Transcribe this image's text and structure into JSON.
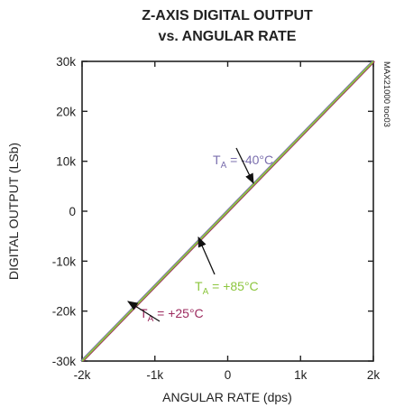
{
  "chart_data": {
    "type": "line",
    "title": "Z-AXIS DIGITAL OUTPUT",
    "subtitle": "vs. ANGULAR RATE",
    "xlabel": "ANGULAR RATE (dps)",
    "ylabel": "DIGITAL OUTPUT (LSb)",
    "side_label": "MAX21000 toc03",
    "xlim": [
      -2000,
      2000
    ],
    "ylim": [
      -30000,
      30000
    ],
    "x_ticks": [
      -2000,
      -1000,
      0,
      1000,
      2000
    ],
    "x_tick_labels": [
      "-2k",
      "-1k",
      "0",
      "1k",
      "2k"
    ],
    "y_ticks": [
      30000,
      20000,
      10000,
      0,
      -10000,
      -20000,
      -30000
    ],
    "y_tick_labels": [
      "30k",
      "20k",
      "10k",
      "0",
      "-10k",
      "-20k",
      "-30k"
    ],
    "grid": false,
    "series": [
      {
        "name": "TA = -40°C",
        "color": "#7b6fae",
        "x": [
          -2000,
          2000
        ],
        "y": [
          -30000,
          30000
        ]
      },
      {
        "name": "TA = +25°C",
        "color": "#9c2a5e",
        "x": [
          -2000,
          2000
        ],
        "y": [
          -30000,
          30000
        ]
      },
      {
        "name": "TA = +85°C",
        "color": "#8dc63f",
        "x": [
          -2000,
          2000
        ],
        "y": [
          -30000,
          30000
        ]
      }
    ],
    "annotations": [
      {
        "prefix": "T",
        "sub": "A",
        "suffix": " = -40°C",
        "color": "#7b6fae",
        "at": [
          -1000,
          -25000
        ],
        "arrow_to": [
          -1000,
          -25000
        ]
      },
      {
        "prefix": "T",
        "sub": "A",
        "suffix": " = +85°C",
        "color": "#8dc63f",
        "at": [
          -1000,
          -25000
        ],
        "arrow_to": [
          -1000,
          -25000
        ]
      },
      {
        "prefix": "T",
        "sub": "A",
        "suffix": " = +25°C",
        "color": "#9c2a5e",
        "at": [
          -1000,
          -25000
        ],
        "arrow_to": [
          -1000,
          -25000
        ]
      }
    ]
  }
}
